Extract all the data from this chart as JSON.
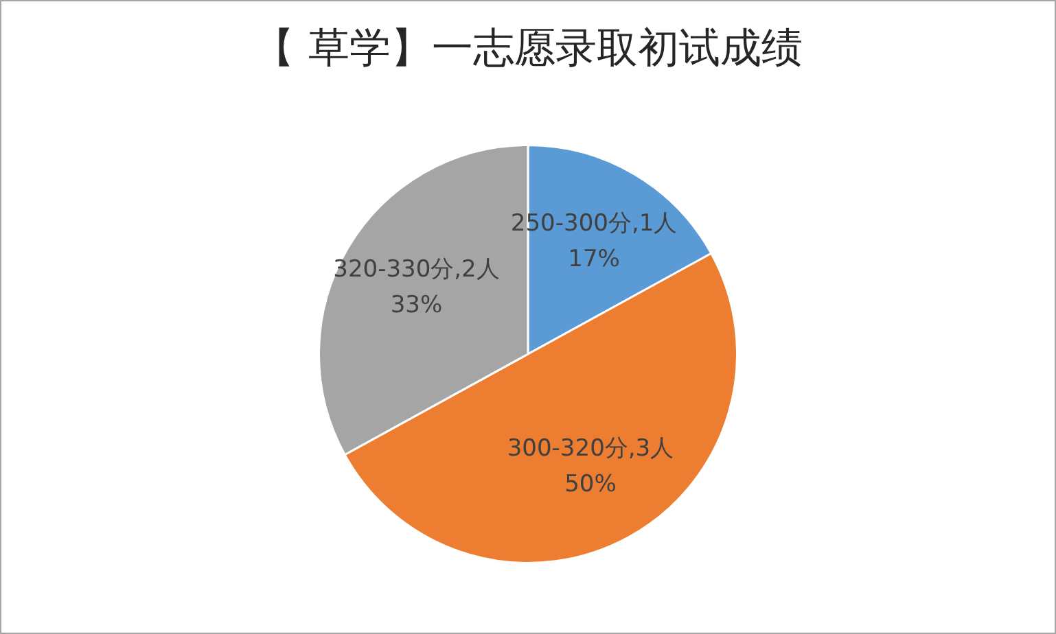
{
  "chart_data": {
    "type": "pie",
    "title": "【 草学】一志愿录取初试成绩",
    "categories": [
      "250-300分,1人",
      "300-320分,3人",
      "320-330分,2人"
    ],
    "values": [
      17,
      50,
      33
    ],
    "colors": [
      "#5b9bd5",
      "#ed7d31",
      "#a5a5a5"
    ],
    "value_labels": [
      "17%",
      "50%",
      "33%"
    ],
    "legend": false
  }
}
